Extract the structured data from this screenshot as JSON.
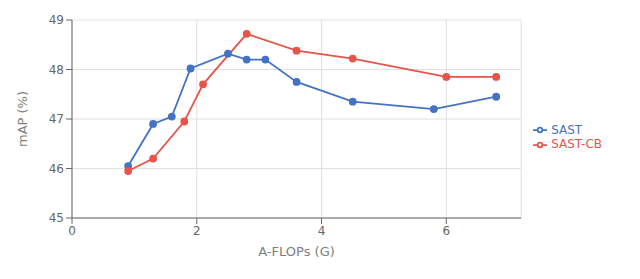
{
  "chart_data": {
    "type": "line",
    "xlabel": "A-FLOPs (G)",
    "ylabel": "mAP (%)",
    "series": [
      {
        "name": "SAST",
        "color": "#4472C4",
        "marker": "o",
        "x": [
          0.9,
          1.3,
          1.6,
          1.9,
          2.5,
          2.8,
          3.1,
          3.6,
          4.5,
          5.8,
          6.8
        ],
        "values": [
          46.05,
          46.9,
          47.05,
          48.02,
          48.32,
          48.2,
          48.2,
          47.75,
          47.35,
          47.2,
          47.45
        ]
      },
      {
        "name": "SAST-CB",
        "color": "#E8534A",
        "marker": "o",
        "x": [
          0.9,
          1.3,
          1.8,
          2.1,
          2.8,
          3.6,
          4.5,
          6.0,
          6.8
        ],
        "values": [
          45.95,
          46.2,
          46.95,
          47.7,
          48.72,
          48.38,
          48.22,
          47.85,
          47.85
        ]
      }
    ],
    "xlim": [
      0,
      7.2
    ],
    "xticks": [
      0,
      2,
      4,
      6
    ],
    "ylim": [
      45,
      49
    ],
    "yticks": [
      45,
      46,
      47,
      48,
      49
    ],
    "grid": true,
    "legend": "right"
  }
}
